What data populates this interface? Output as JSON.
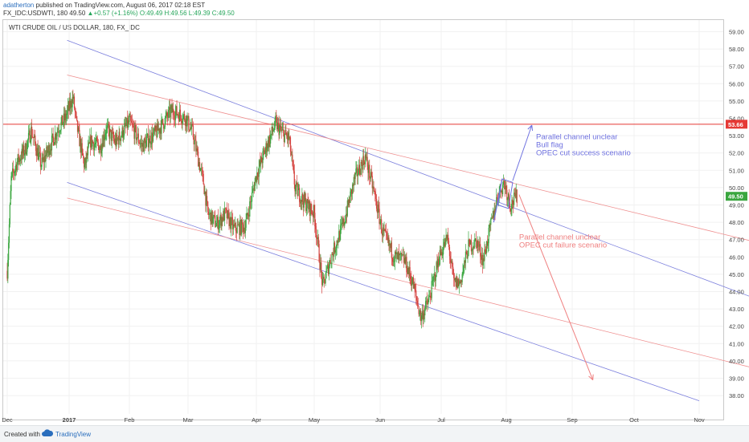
{
  "header": {
    "user": "adatherton",
    "published_text": " published on TradingView.com, August 06, 2017 02:18 EST",
    "symbol": "FX_IDC:USDWTI, 180",
    "last": "49.50",
    "change_arrow": "▲",
    "change": "+0.57 (+1.16%)",
    "open": "O:49.49",
    "high": "H:49.56",
    "low": "L:49.39",
    "close": "C:49.50"
  },
  "chart_data": {
    "type": "candlestick",
    "title": "WTI CRUDE OIL / US DOLLAR, 180, FX_IDC",
    "x_ticks": [
      "Dec",
      "2017",
      "Feb",
      "Mar",
      "Apr",
      "May",
      "Jun",
      "Jul",
      "Aug",
      "Sep",
      "Oct",
      "Nov"
    ],
    "y_ticks": [
      "59.00",
      "58.00",
      "57.00",
      "56.00",
      "55.00",
      "54.00",
      "53.00",
      "52.00",
      "51.00",
      "50.00",
      "49.00",
      "48.00",
      "47.00",
      "46.00",
      "45.00",
      "44.00",
      "43.00",
      "42.00",
      "41.00",
      "40.00",
      "39.00",
      "38.00"
    ],
    "ylim": [
      37.7,
      59.4
    ],
    "price_path": [
      [
        "2016-12-01",
        45.2
      ],
      [
        "2016-12-03",
        50.5
      ],
      [
        "2016-12-06",
        51.5
      ],
      [
        "2016-12-10",
        52.2
      ],
      [
        "2016-12-13",
        53.3
      ],
      [
        "2016-12-18",
        51.3
      ],
      [
        "2016-12-22",
        52.3
      ],
      [
        "2016-12-27",
        53.5
      ],
      [
        "2016-12-30",
        54.0
      ],
      [
        "2017-01-03",
        55.2
      ],
      [
        "2017-01-05",
        53.5
      ],
      [
        "2017-01-09",
        51.2
      ],
      [
        "2017-01-12",
        52.7
      ],
      [
        "2017-01-17",
        52.3
      ],
      [
        "2017-01-20",
        53.4
      ],
      [
        "2017-01-25",
        52.6
      ],
      [
        "2017-02-01",
        53.8
      ],
      [
        "2017-02-07",
        52.4
      ],
      [
        "2017-02-14",
        53.2
      ],
      [
        "2017-02-21",
        54.4
      ],
      [
        "2017-02-24",
        54.3
      ],
      [
        "2017-02-28",
        54.0
      ],
      [
        "2017-03-03",
        53.2
      ],
      [
        "2017-03-08",
        50.3
      ],
      [
        "2017-03-10",
        48.5
      ],
      [
        "2017-03-14",
        47.9
      ],
      [
        "2017-03-18",
        48.5
      ],
      [
        "2017-03-22",
        47.6
      ],
      [
        "2017-03-27",
        47.8
      ],
      [
        "2017-04-01",
        50.7
      ],
      [
        "2017-04-06",
        52.3
      ],
      [
        "2017-04-11",
        53.7
      ],
      [
        "2017-04-14",
        53.2
      ],
      [
        "2017-04-18",
        52.8
      ],
      [
        "2017-04-21",
        50.0
      ],
      [
        "2017-04-25",
        49.3
      ],
      [
        "2017-05-01",
        48.5
      ],
      [
        "2017-05-05",
        44.3
      ],
      [
        "2017-05-09",
        46.0
      ],
      [
        "2017-05-15",
        48.0
      ],
      [
        "2017-05-20",
        50.5
      ],
      [
        "2017-05-25",
        51.8
      ],
      [
        "2017-05-29",
        49.8
      ],
      [
        "2017-06-02",
        47.5
      ],
      [
        "2017-06-08",
        46.0
      ],
      [
        "2017-06-13",
        45.8
      ],
      [
        "2017-06-17",
        44.5
      ],
      [
        "2017-06-21",
        42.5
      ],
      [
        "2017-06-25",
        43.5
      ],
      [
        "2017-06-30",
        46.0
      ],
      [
        "2017-07-04",
        47.1
      ],
      [
        "2017-07-07",
        44.5
      ],
      [
        "2017-07-10",
        44.5
      ],
      [
        "2017-07-14",
        46.6
      ],
      [
        "2017-07-18",
        46.9
      ],
      [
        "2017-07-21",
        45.8
      ],
      [
        "2017-07-25",
        48.0
      ],
      [
        "2017-07-28",
        49.6
      ],
      [
        "2017-07-31",
        50.3
      ],
      [
        "2017-08-03",
        49.0
      ],
      [
        "2017-08-06",
        49.5
      ]
    ],
    "last_price": 49.5,
    "last_price_label": "49.50",
    "horizontal_level": {
      "value": 53.66,
      "label": "53.66",
      "color": "#e53935"
    },
    "channels": [
      {
        "name": "blue-upper",
        "color": "#7b7fdd",
        "from": [
          "2016-12-31",
          58.5
        ],
        "to": [
          "2017-11-30",
          43.5
        ]
      },
      {
        "name": "blue-lower",
        "color": "#7b7fdd",
        "from": [
          "2016-12-31",
          50.3
        ],
        "to": [
          "2017-11-01",
          37.7
        ]
      },
      {
        "name": "red-upper",
        "color": "#ef8f8f",
        "from": [
          "2016-12-31",
          56.5
        ],
        "to": [
          "2017-11-30",
          46.8
        ]
      },
      {
        "name": "red-lower",
        "color": "#ef8f8f",
        "from": [
          "2016-12-31",
          49.4
        ],
        "to": [
          "2017-11-30",
          39.5
        ]
      }
    ],
    "flag": {
      "color": "#6f72e0",
      "pole": [
        [
          "2017-07-26",
          48.0
        ],
        [
          "2017-07-30",
          50.5
        ]
      ],
      "box": [
        [
          "2017-07-30",
          50.5
        ],
        [
          "2017-08-04",
          50.3
        ],
        [
          "2017-08-02",
          48.8
        ],
        [
          "2017-07-28",
          49.0
        ]
      ]
    },
    "annotations": [
      {
        "lines": [
          "Parallel channel unclear",
          "Bull flag",
          "OPEC cut success scenario"
        ],
        "color": "#6f72e0",
        "arrow_from": [
          "2017-08-04",
          50.4
        ],
        "arrow_to": [
          "2017-08-13",
          53.6
        ],
        "text_at": [
          "2017-08-15",
          52.8
        ]
      },
      {
        "lines": [
          "Parallel channel unclear",
          "OPEC cut failure scenario"
        ],
        "color": "#ef7f7f",
        "arrow_from": [
          "2017-08-07",
          49.6
        ],
        "arrow_to": [
          "2017-09-11",
          38.9
        ],
        "text_at": [
          "2017-08-07",
          47.0
        ]
      }
    ]
  },
  "footer": {
    "created_with": "Created with",
    "brand": "TradingView"
  }
}
